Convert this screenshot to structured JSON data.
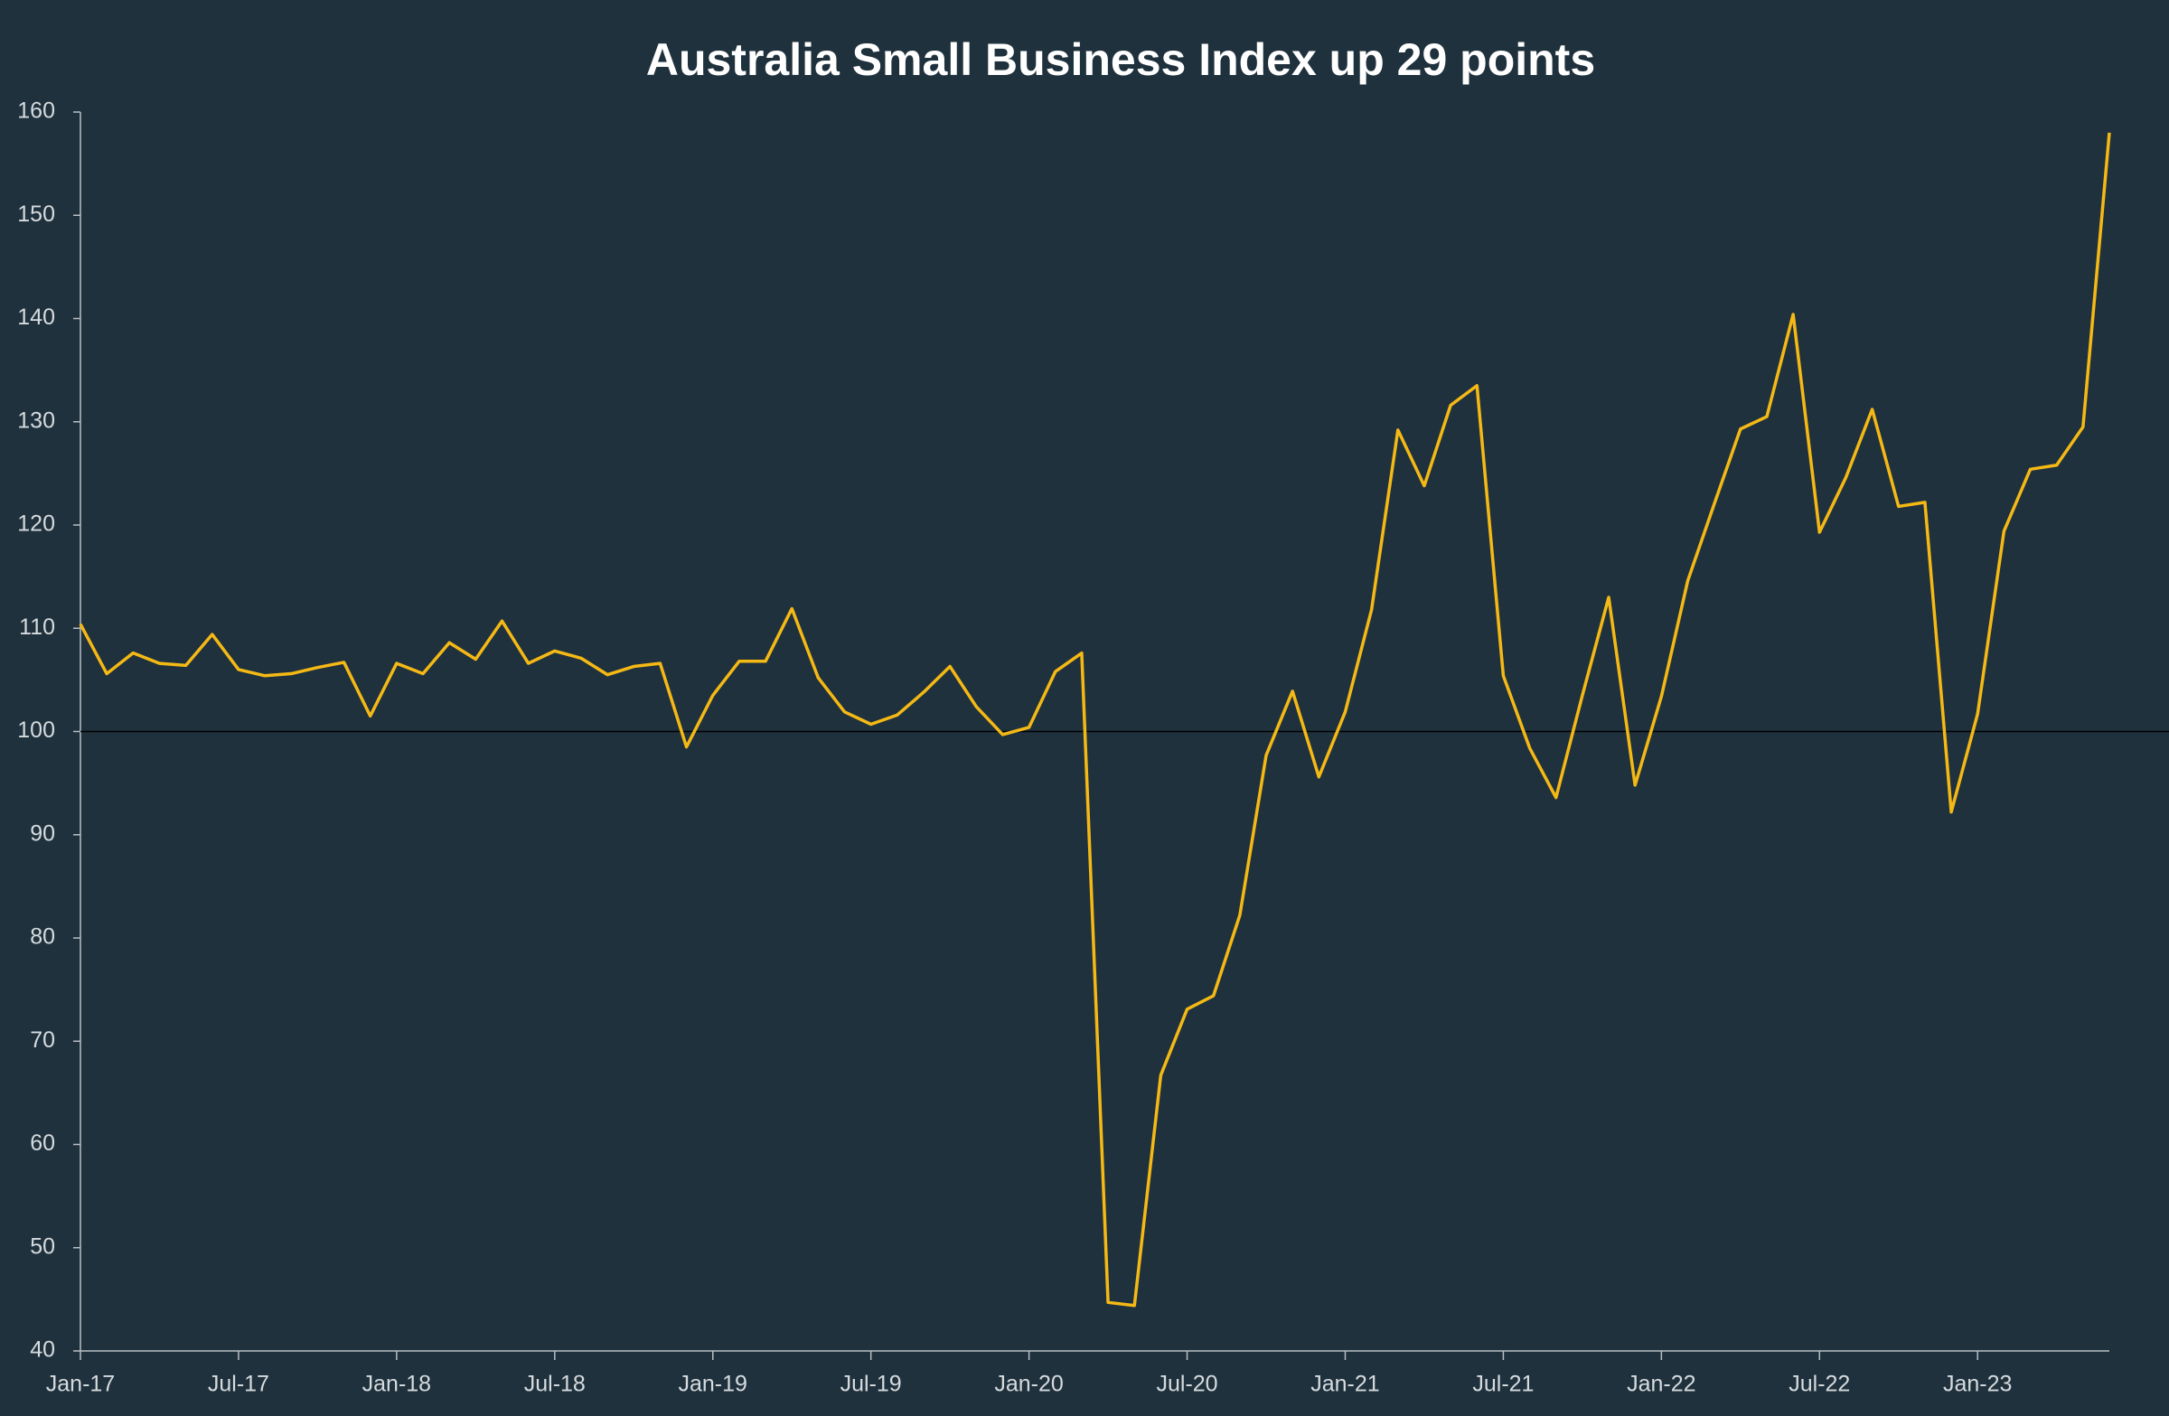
{
  "chart_data": {
    "type": "line",
    "title": "Australia Small Business Index up 29 points",
    "categories": [
      "Jan-17",
      null,
      null,
      null,
      null,
      null,
      "Jul-17",
      null,
      null,
      null,
      null,
      null,
      "Jan-18",
      null,
      null,
      null,
      null,
      null,
      "Jul-18",
      null,
      null,
      null,
      null,
      null,
      "Jan-19",
      null,
      null,
      null,
      null,
      null,
      "Jul-19",
      null,
      null,
      null,
      null,
      null,
      "Jan-20",
      null,
      null,
      null,
      null,
      null,
      "Jul-20",
      null,
      null,
      null,
      null,
      null,
      "Jan-21",
      null,
      null,
      null,
      null,
      null,
      "Jul-21",
      null,
      null,
      null,
      null,
      null,
      "Jan-22",
      null,
      null,
      null,
      null,
      null,
      "Jul-22",
      null,
      null,
      null,
      null,
      null,
      "Jan-23",
      null,
      null,
      null,
      null,
      null
    ],
    "series": [
      {
        "color": "#f5b915",
        "values": [
          110.4,
          105.6,
          107.6,
          106.6,
          106.4,
          109.4,
          106.0,
          105.4,
          105.6,
          106.2,
          106.7,
          101.5,
          106.6,
          105.6,
          108.6,
          107.0,
          110.7,
          106.6,
          107.8,
          107.1,
          105.5,
          106.3,
          106.6,
          98.5,
          103.5,
          106.8,
          106.8,
          111.9,
          105.2,
          101.9,
          100.7,
          101.6,
          103.8,
          106.3,
          102.4,
          99.7,
          100.4,
          105.8,
          107.6,
          44.7,
          44.4,
          66.7,
          73.1,
          74.4,
          82.2,
          97.7,
          103.9,
          95.6,
          101.9,
          111.8,
          129.2,
          123.8,
          131.6,
          133.5,
          105.4,
          98.4,
          93.6,
          103.5,
          113.0,
          94.8,
          103.4,
          114.6,
          122.0,
          129.3,
          130.5,
          140.4,
          119.3,
          124.6,
          131.2,
          121.8,
          122.2,
          92.2,
          101.7,
          119.4,
          125.4,
          125.8,
          129.5,
          158.0
        ]
      }
    ],
    "ylim": [
      40,
      160
    ],
    "yticks": [
      40,
      50,
      60,
      70,
      80,
      90,
      100,
      110,
      120,
      130,
      140,
      150,
      160
    ],
    "reference_line": 100
  }
}
